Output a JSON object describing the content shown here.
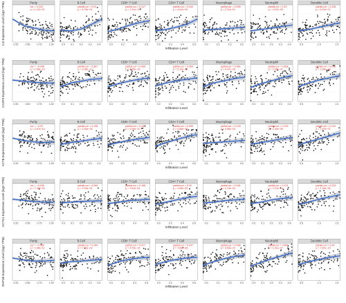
{
  "chart_data": {
    "type": "scatter",
    "x_label": "Infiltration Level",
    "panel_titles": [
      "Purity",
      "B Cell",
      "CD8+ T Cell",
      "CD4+ T Cell",
      "Macrophage",
      "Neutrophil",
      "Dendritic Cell"
    ],
    "rows": [
      {
        "ylabel": "IL6 Expression Level (log2 TPM)",
        "panels": [
          {
            "cor": "cor = 0.242",
            "p": "p = 1.47e−07",
            "x_ticks": [
              "0.25",
              "0.50",
              "0.75",
              "1.00"
            ],
            "y_ticks": [],
            "trend": [
              0.62,
              0.45,
              0.38,
              0.32,
              0.3
            ]
          },
          {
            "cor": "partial.cor = 0.02",
            "p": "p = 6.75e−01",
            "x_ticks": [
              "0.0",
              "0.1",
              "0.2",
              "0.3",
              "0.4"
            ],
            "y_ticks": [],
            "trend": [
              0.32,
              0.3,
              0.35,
              0.48,
              0.62
            ]
          },
          {
            "cor": "partial.cor = 0.317",
            "p": "p = 7.21e−12",
            "x_ticks": [
              "0.0",
              "0.2",
              "0.4",
              "0.6"
            ],
            "y_ticks": [],
            "trend": [
              0.28,
              0.35,
              0.45,
              0.52,
              0.58
            ]
          },
          {
            "cor": "partial.cor = 0.163",
            "p": "p = 4.61e−04",
            "x_ticks": [
              "0.0",
              "0.2",
              "0.4",
              "0.6"
            ],
            "y_ticks": [],
            "trend": [
              0.3,
              0.34,
              0.4,
              0.48,
              0.62
            ]
          },
          {
            "cor": "partial.cor = 0.095",
            "p": "p = 2.10e−01",
            "x_ticks": [
              "0.0",
              "0.1",
              "0.2",
              "0.3"
            ],
            "y_ticks": [],
            "trend": [
              0.32,
              0.34,
              0.36,
              0.38,
              0.4
            ]
          },
          {
            "cor": "partial.cor = 0.19",
            "p": "p = 4.12e−05",
            "x_ticks": [
              "0.0",
              "0.1",
              "0.2",
              "0.3",
              "0.4"
            ],
            "y_ticks": [],
            "trend": [
              0.3,
              0.34,
              0.38,
              0.42,
              0.46
            ]
          },
          {
            "cor": "partial.cor = 0.228",
            "p": "p = 5.22e−07",
            "x_ticks": [
              "0.5",
              "1.0",
              "1.5"
            ],
            "y_ticks": [],
            "trend": [
              0.3,
              0.34,
              0.4,
              0.46,
              0.52
            ]
          }
        ]
      },
      {
        "ylabel": "CASP3 Expression Level (log2 TPM)",
        "panels": [
          {
            "cor": "cor = −0.348",
            "p": "p = 1.48e−14",
            "x_ticks": [
              "0.25",
              "0.50",
              "0.75",
              "1.00"
            ],
            "y_ticks": [],
            "trend": [
              0.58,
              0.55,
              0.52,
              0.5,
              0.5
            ]
          },
          {
            "cor": "partial.cor = 0.387",
            "p": "p = 3.08e−17",
            "x_ticks": [
              "0.0",
              "0.1",
              "0.2",
              "0.3",
              "0.4"
            ],
            "y_ticks": [],
            "trend": [
              0.4,
              0.5,
              0.55,
              0.6,
              0.62
            ]
          },
          {
            "cor": "partial.cor = 0.365",
            "p": "p = 2.26e−15",
            "x_ticks": [
              "0.0",
              "0.2",
              "0.4",
              "0.6"
            ],
            "y_ticks": [],
            "trend": [
              0.4,
              0.48,
              0.55,
              0.6,
              0.64
            ]
          },
          {
            "cor": "partial.cor = 0.354",
            "p": "p = 5.19e−15",
            "x_ticks": [
              "0.0",
              "0.2",
              "0.4",
              "0.6"
            ],
            "y_ticks": [],
            "trend": [
              0.42,
              0.5,
              0.56,
              0.6,
              0.64
            ]
          },
          {
            "cor": "partial.cor = 0.461",
            "p": "p = 4.47e−25",
            "x_ticks": [
              "0.0",
              "0.1",
              "0.2",
              "0.3"
            ],
            "y_ticks": [],
            "trend": [
              0.4,
              0.5,
              0.56,
              0.62,
              0.66
            ]
          },
          {
            "cor": "partial.cor = 0.608",
            "p": "p = 2.08e−47",
            "x_ticks": [
              "0.0",
              "0.1",
              "0.2",
              "0.3",
              "0.4"
            ],
            "y_ticks": [],
            "trend": [
              0.38,
              0.48,
              0.56,
              0.64,
              0.7
            ]
          },
          {
            "cor": "partial.cor = 0.516",
            "p": "p = 1.54e−33",
            "x_ticks": [
              "0.5",
              "1.0",
              "1.5"
            ],
            "y_ticks": [],
            "trend": [
              0.4,
              0.5,
              0.58,
              0.64,
              0.7
            ]
          }
        ]
      },
      {
        "ylabel": "ACTB Expression Level (log2 TPM)",
        "panels": [
          {
            "cor": "cor = −0.29",
            "p": "p = 2.57e−10",
            "x_ticks": [
              "0.25",
              "0.50",
              "0.75",
              "1.00"
            ],
            "y_ticks": [],
            "trend": [
              0.62,
              0.56,
              0.52,
              0.5,
              0.52
            ]
          },
          {
            "cor": "partial.cor = 0.198",
            "p": "p = 2.05e−05",
            "x_ticks": [
              "0.0",
              "0.1",
              "0.2",
              "0.3",
              "0.4"
            ],
            "y_ticks": [],
            "trend": [
              0.45,
              0.5,
              0.54,
              0.58,
              0.62
            ]
          },
          {
            "cor": "partial.cor = 0.283",
            "p": "p = 9.25e−10",
            "x_ticks": [
              "0.0",
              "0.2",
              "0.4",
              "0.6"
            ],
            "y_ticks": [],
            "trend": [
              0.44,
              0.5,
              0.56,
              0.6,
              0.64
            ]
          },
          {
            "cor": "partial.cor = 0.365",
            "p": "p = 4.59e−16",
            "x_ticks": [
              "0.0",
              "0.2",
              "0.4",
              "0.6"
            ],
            "y_ticks": [],
            "trend": [
              0.4,
              0.5,
              0.58,
              0.66,
              0.72
            ]
          },
          {
            "cor": "partial.cor = 0.133",
            "p": "p = 4.58e−03",
            "x_ticks": [
              "0.0",
              "0.1",
              "0.2",
              "0.3"
            ],
            "y_ticks": [],
            "trend": [
              0.48,
              0.5,
              0.52,
              0.54,
              0.56
            ]
          },
          {
            "cor": "partial.cor = 0.225",
            "p": "p = 1.40e−06",
            "x_ticks": [
              "0.0",
              "0.1",
              "0.2",
              "0.3",
              "0.4"
            ],
            "y_ticks": [],
            "trend": [
              0.46,
              0.5,
              0.55,
              0.6,
              0.64
            ]
          },
          {
            "cor": "partial.cor = 0.242",
            "p": "p = 1.87e−07",
            "x_ticks": [
              "0.5",
              "1.0",
              "1.5"
            ],
            "y_ticks": [],
            "trend": [
              0.44,
              0.52,
              0.6,
              0.68,
              0.76
            ]
          }
        ]
      },
      {
        "ylabel": "ACTG1 Expression Level (log2 TPM)",
        "panels": [
          {
            "cor": "cor = −0.156",
            "p": "p = 7.43e−04",
            "x_ticks": [
              "0.25",
              "0.50",
              "0.75",
              "1.00"
            ],
            "y_ticks": [],
            "trend": [
              0.58,
              0.55,
              0.52,
              0.5,
              0.5
            ]
          },
          {
            "cor": "partial.cor = 0.069",
            "p": "p = 2.49e−01",
            "x_ticks": [
              "0.0",
              "0.1",
              "0.2",
              "0.3",
              "0.4"
            ],
            "y_ticks": [],
            "trend": [
              0.48,
              0.5,
              0.52,
              0.53,
              0.54
            ]
          },
          {
            "cor": "partial.cor = 0.158",
            "p": "p = 7.61e−04",
            "x_ticks": [
              "0.0",
              "0.2",
              "0.4",
              "0.6"
            ],
            "y_ticks": [],
            "trend": [
              0.46,
              0.5,
              0.54,
              0.56,
              0.58
            ]
          },
          {
            "cor": "partial.cor = 0.29",
            "p": "p = 1.55e−09",
            "x_ticks": [
              "0.0",
              "0.2",
              "0.4",
              "0.6"
            ],
            "y_ticks": [],
            "trend": [
              0.44,
              0.5,
              0.56,
              0.62,
              0.66
            ]
          },
          {
            "cor": "partial.cor = 0.181",
            "p": "p = 1.14e−04",
            "x_ticks": [
              "0.0",
              "0.1",
              "0.2",
              "0.3"
            ],
            "y_ticks": [],
            "trend": [
              0.48,
              0.5,
              0.54,
              0.56,
              0.58
            ]
          },
          {
            "cor": "partial.cor = 0.174",
            "p": "p = 2.10e−04",
            "x_ticks": [
              "0.0",
              "0.1",
              "0.2",
              "0.3",
              "0.4"
            ],
            "y_ticks": [],
            "trend": [
              0.46,
              0.5,
              0.56,
              0.6,
              0.62
            ]
          },
          {
            "cor": "partial.cor = 0.225",
            "p": "p = 1.26e−06",
            "x_ticks": [
              "0.5",
              "1.0",
              "1.5"
            ],
            "y_ticks": [],
            "trend": [
              0.44,
              0.5,
              0.58,
              0.64,
              0.7
            ]
          }
        ]
      },
      {
        "ylabel": "RAP1B Expression Level (log2 TPM)",
        "panels": [
          {
            "cor": "cor = −0.289",
            "p": "p = 2.99e−11",
            "x_ticks": [
              "0.25",
              "0.50",
              "0.75",
              "1.00"
            ],
            "y_ticks": [],
            "trend": [
              0.6,
              0.55,
              0.52,
              0.52,
              0.54
            ]
          },
          {
            "cor": "partial.cor = 0.164",
            "p": "p = 7.33e−02",
            "x_ticks": [
              "0.0",
              "0.1",
              "0.2",
              "0.3",
              "0.4"
            ],
            "y_ticks": [],
            "trend": [
              0.46,
              0.5,
              0.52,
              0.54,
              0.56
            ]
          },
          {
            "cor": "partial.cor = 0.377",
            "p": "p = 4.70e−15",
            "x_ticks": [
              "0.0",
              "0.2",
              "0.4",
              "0.6"
            ],
            "y_ticks": [],
            "trend": [
              0.4,
              0.5,
              0.56,
              0.6,
              0.62
            ]
          },
          {
            "cor": "partial.cor = 0.247",
            "p": "p = 7.60e−08",
            "x_ticks": [
              "0.0",
              "0.2",
              "0.4",
              "0.6"
            ],
            "y_ticks": [],
            "trend": [
              0.42,
              0.5,
              0.56,
              0.6,
              0.62
            ]
          },
          {
            "cor": "partial.cor = 0.436",
            "p": "p = 3.54e−22",
            "x_ticks": [
              "0.0",
              "0.1",
              "0.2",
              "0.3"
            ],
            "y_ticks": [],
            "trend": [
              0.4,
              0.5,
              0.58,
              0.64,
              0.68
            ]
          },
          {
            "cor": "partial.cor = 0.609",
            "p": "p = 1.31e−47",
            "x_ticks": [
              "0.0",
              "0.1",
              "0.2",
              "0.3",
              "0.4"
            ],
            "y_ticks": [],
            "trend": [
              0.38,
              0.48,
              0.58,
              0.66,
              0.74
            ]
          },
          {
            "cor": "partial.cor = 0.34",
            "p": "p = 7.87e−14",
            "x_ticks": [
              "0.5",
              "1.0",
              "1.5"
            ],
            "y_ticks": [],
            "trend": [
              0.42,
              0.5,
              0.56,
              0.62,
              0.66
            ]
          }
        ]
      }
    ]
  }
}
